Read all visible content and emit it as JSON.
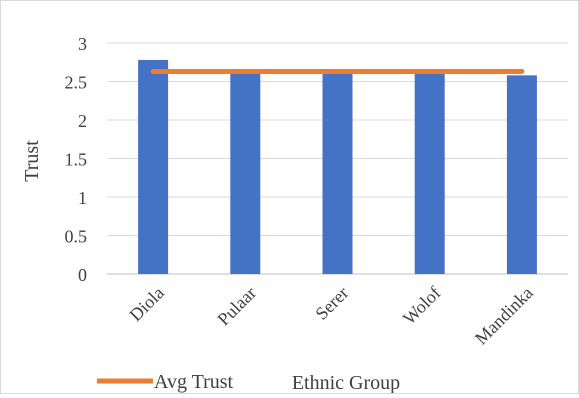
{
  "chart_data": {
    "type": "bar",
    "categories": [
      "Diola",
      "Pulaar",
      "Serer",
      "Wolof",
      "Mandinka"
    ],
    "series": [
      {
        "type": "bar",
        "values": [
          2.78,
          2.6,
          2.6,
          2.6,
          2.58
        ],
        "color": "#4472C4"
      },
      {
        "name": "Avg Trust",
        "type": "line",
        "values": [
          2.63,
          2.63,
          2.63,
          2.63,
          2.63
        ],
        "color": "#ED7D31"
      }
    ],
    "title": "",
    "xlabel": "Ethnic Group",
    "ylabel": "Trust",
    "ylim": [
      0,
      3
    ],
    "yticks": [
      "0",
      "0.5",
      "1",
      "1.5",
      "2",
      "2.5",
      "3"
    ],
    "grid": true,
    "legend": "bottom-left"
  }
}
